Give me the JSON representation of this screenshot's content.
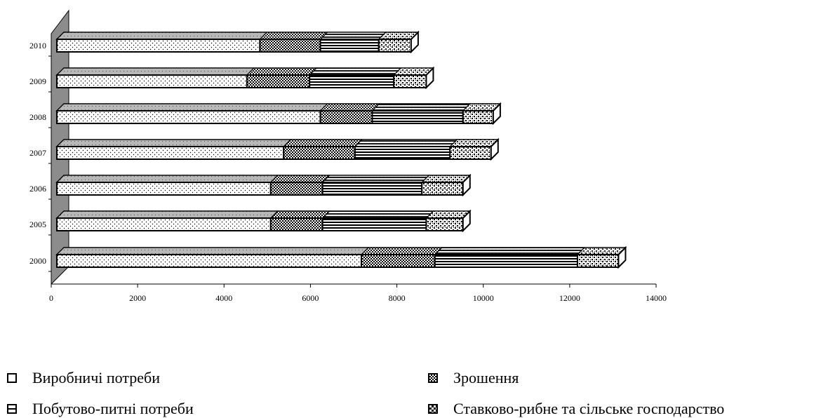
{
  "chart_data": {
    "type": "bar",
    "orientation": "horizontal",
    "stacked": true,
    "three_d": true,
    "categories": [
      "2000",
      "2005",
      "2006",
      "2007",
      "2008",
      "2009",
      "2010"
    ],
    "series": [
      {
        "name": "Виробничі потреби",
        "values": [
          7050,
          4950,
          4950,
          5250,
          6100,
          4400,
          4700
        ]
      },
      {
        "name": "Зрошення",
        "values": [
          1700,
          1200,
          1200,
          1650,
          1200,
          1450,
          1400
        ]
      },
      {
        "name": "Побутово-питні потреби",
        "values": [
          3300,
          2400,
          2300,
          2200,
          2100,
          1950,
          1350
        ]
      },
      {
        "name": "Ставково-рибне та сільське господарство",
        "values": [
          950,
          850,
          950,
          950,
          700,
          750,
          750
        ]
      }
    ],
    "xlim": [
      0,
      14000
    ],
    "x_ticks": [
      "0",
      "2000",
      "4000",
      "6000",
      "8000",
      "10000",
      "12000",
      "14000"
    ],
    "title": "",
    "xlabel": "",
    "ylabel": "",
    "legend_position": "bottom",
    "grid": false,
    "colors": {
      "wall": "#8c8c8c",
      "wall_top": "#b5b5b5",
      "bar_top": "#b8b8b8",
      "stroke": "#000000"
    },
    "patterns": [
      "sparse-dots",
      "dense-dots",
      "horizontal-stripes",
      "checker-dots"
    ]
  },
  "legend": {
    "items": [
      {
        "label": "Виробничі потреби",
        "icon": "sparse-dots-swatch"
      },
      {
        "label": "Зрошення",
        "icon": "dense-dots-swatch"
      },
      {
        "label": "Побутово-питні потреби",
        "icon": "horizontal-stripes-swatch"
      },
      {
        "label": "Ставково-рибне та сільське господарство",
        "icon": "checker-dots-swatch"
      }
    ]
  }
}
